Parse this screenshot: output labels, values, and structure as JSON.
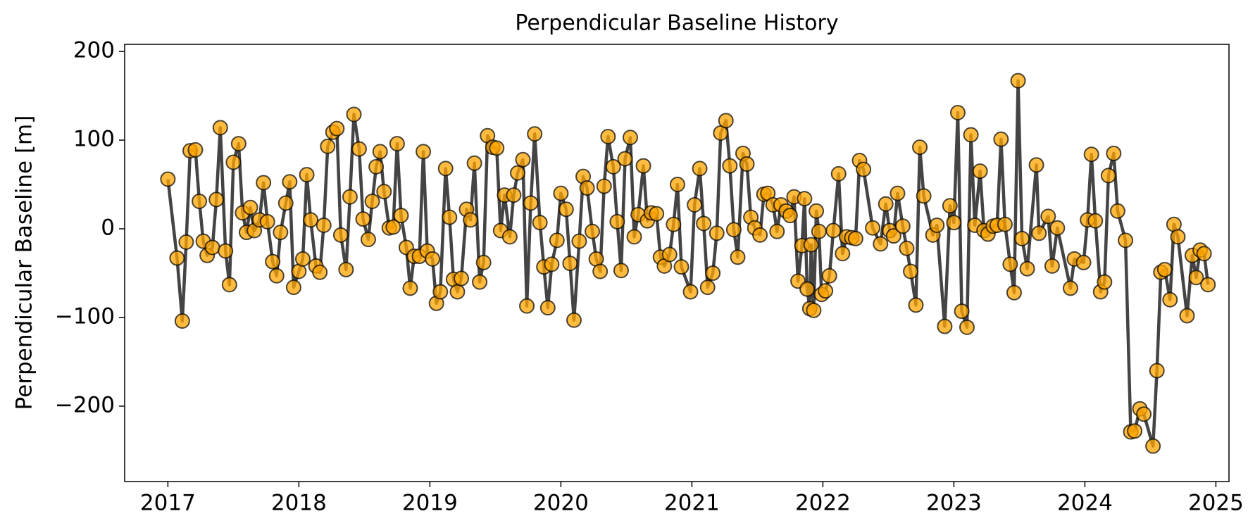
{
  "chart_data": {
    "type": "line",
    "title": "Perpendicular Baseline History",
    "ylabel": "Perpendicular Baseline [m]",
    "xlim": [
      2016.67,
      2025.1
    ],
    "xticks": [
      2017,
      2018,
      2019,
      2020,
      2021,
      2022,
      2023,
      2024,
      2025
    ],
    "ylim": [
      -285,
      208
    ],
    "yticks": [
      {
        "value": -200,
        "label": "−200"
      },
      {
        "value": -100,
        "label": "−100"
      },
      0,
      100,
      200
    ],
    "grid": false,
    "series": [
      {
        "name": "Perpendicular Baseline",
        "color": "#444444",
        "marker_color": "#ffa500",
        "x": [
          2017.0,
          2017.07,
          2017.11,
          2017.14,
          2017.17,
          2017.21,
          2017.24,
          2017.27,
          2017.3,
          2017.34,
          2017.37,
          2017.4,
          2017.44,
          2017.47,
          2017.5,
          2017.54,
          2017.57,
          2017.6,
          2017.63,
          2017.66,
          2017.7,
          2017.73,
          2017.76,
          2017.8,
          2017.83,
          2017.86,
          2017.9,
          2017.93,
          2017.96,
          2018.0,
          2018.03,
          2018.06,
          2018.09,
          2018.13,
          2018.16,
          2018.19,
          2018.22,
          2018.26,
          2018.29,
          2018.32,
          2018.36,
          2018.39,
          2018.42,
          2018.46,
          2018.49,
          2018.53,
          2018.56,
          2018.59,
          2018.62,
          2018.65,
          2018.69,
          2018.72,
          2018.75,
          2018.78,
          2018.82,
          2018.85,
          2018.88,
          2018.92,
          2018.95,
          2018.98,
          2019.02,
          2019.05,
          2019.08,
          2019.12,
          2019.15,
          2019.18,
          2019.21,
          2019.24,
          2019.28,
          2019.31,
          2019.34,
          2019.38,
          2019.41,
          2019.44,
          2019.48,
          2019.51,
          2019.54,
          2019.57,
          2019.61,
          2019.64,
          2019.67,
          2019.71,
          2019.74,
          2019.77,
          2019.8,
          2019.84,
          2019.87,
          2019.9,
          2019.93,
          2019.97,
          2020.0,
          2020.04,
          2020.07,
          2020.1,
          2020.14,
          2020.17,
          2020.2,
          2020.24,
          2020.27,
          2020.3,
          2020.33,
          2020.36,
          2020.4,
          2020.43,
          2020.46,
          2020.49,
          2020.53,
          2020.56,
          2020.59,
          2020.63,
          2020.66,
          2020.69,
          2020.73,
          2020.76,
          2020.79,
          2020.83,
          2020.86,
          2020.89,
          2020.92,
          2020.99,
          2021.02,
          2021.06,
          2021.09,
          2021.12,
          2021.16,
          2021.19,
          2021.22,
          2021.26,
          2021.29,
          2021.32,
          2021.35,
          2021.39,
          2021.42,
          2021.45,
          2021.48,
          2021.52,
          2021.55,
          2021.58,
          2021.62,
          2021.65,
          2021.68,
          2021.72,
          2021.75,
          2021.78,
          2021.81,
          2021.84,
          2021.86,
          2021.88,
          2021.9,
          2021.91,
          2021.93,
          2021.95,
          2021.97,
          2021.99,
          2022.02,
          2022.05,
          2022.08,
          2022.12,
          2022.15,
          2022.18,
          2022.22,
          2022.25,
          2022.28,
          2022.31,
          2022.38,
          2022.44,
          2022.48,
          2022.51,
          2022.54,
          2022.57,
          2022.61,
          2022.64,
          2022.67,
          2022.71,
          2022.74,
          2022.77,
          2022.84,
          2022.87,
          2022.93,
          2022.97,
          2023.0,
          2023.03,
          2023.06,
          2023.1,
          2023.13,
          2023.16,
          2023.2,
          2023.23,
          2023.26,
          2023.3,
          2023.33,
          2023.36,
          2023.39,
          2023.43,
          2023.46,
          2023.49,
          2023.52,
          2023.56,
          2023.63,
          2023.65,
          2023.72,
          2023.75,
          2023.79,
          2023.89,
          2023.92,
          2023.99,
          2024.02,
          2024.05,
          2024.08,
          2024.12,
          2024.15,
          2024.18,
          2024.22,
          2024.25,
          2024.31,
          2024.35,
          2024.38,
          2024.42,
          2024.45,
          2024.52,
          2024.55,
          2024.58,
          2024.61,
          2024.65,
          2024.68,
          2024.71,
          2024.78,
          2024.82,
          2024.85,
          2024.88,
          2024.91,
          2024.94
        ],
        "values": [
          56,
          -33,
          -104,
          -15,
          88,
          89,
          31,
          -14,
          -30,
          -21,
          33,
          114,
          -25,
          -63,
          75,
          96,
          18,
          -4,
          24,
          -2,
          10,
          52,
          8,
          -37,
          -53,
          -4,
          29,
          53,
          -66,
          -48,
          -34,
          61,
          10,
          -42,
          -49,
          4,
          93,
          109,
          113,
          -7,
          -46,
          36,
          129,
          90,
          11,
          -12,
          31,
          70,
          87,
          42,
          1,
          2,
          96,
          15,
          -21,
          -67,
          -31,
          -31,
          87,
          -25,
          -34,
          -84,
          -71,
          68,
          13,
          -57,
          -71,
          -56,
          22,
          10,
          74,
          -60,
          -38,
          105,
          92,
          91,
          -2,
          38,
          -9,
          38,
          63,
          78,
          -87,
          29,
          107,
          7,
          -43,
          -89,
          -40,
          -13,
          40,
          22,
          -39,
          -103,
          -14,
          59,
          46,
          -3,
          -34,
          -48,
          48,
          104,
          70,
          8,
          -47,
          79,
          103,
          -9,
          16,
          71,
          9,
          18,
          17,
          -32,
          -42,
          -29,
          5,
          50,
          -43,
          -71,
          27,
          68,
          6,
          -66,
          -50,
          -5,
          108,
          122,
          71,
          -1,
          -32,
          85,
          73,
          13,
          1,
          -7,
          39,
          40,
          27,
          -3,
          27,
          20,
          15,
          36,
          -59,
          -19,
          34,
          -68,
          -90,
          -18,
          -92,
          20,
          -3,
          -74,
          -70,
          -53,
          -2,
          62,
          -28,
          -9,
          -10,
          -11,
          77,
          67,
          1,
          -17,
          28,
          -2,
          -8,
          40,
          3,
          -22,
          -48,
          -86,
          92,
          37,
          -7,
          4,
          -110,
          26,
          7,
          131,
          -93,
          -111,
          106,
          4,
          65,
          -2,
          -6,
          3,
          4,
          101,
          5,
          -40,
          -72,
          167,
          -11,
          -45,
          72,
          -5,
          14,
          -42,
          1,
          -67,
          -34,
          -38,
          10,
          84,
          9,
          -71,
          -60,
          60,
          85,
          20,
          -13,
          -229,
          -228,
          -203,
          -209,
          -245,
          -160,
          -49,
          -46,
          -80,
          5,
          -9,
          -98,
          -30,
          -55,
          -24,
          -28,
          -63
        ]
      }
    ]
  }
}
